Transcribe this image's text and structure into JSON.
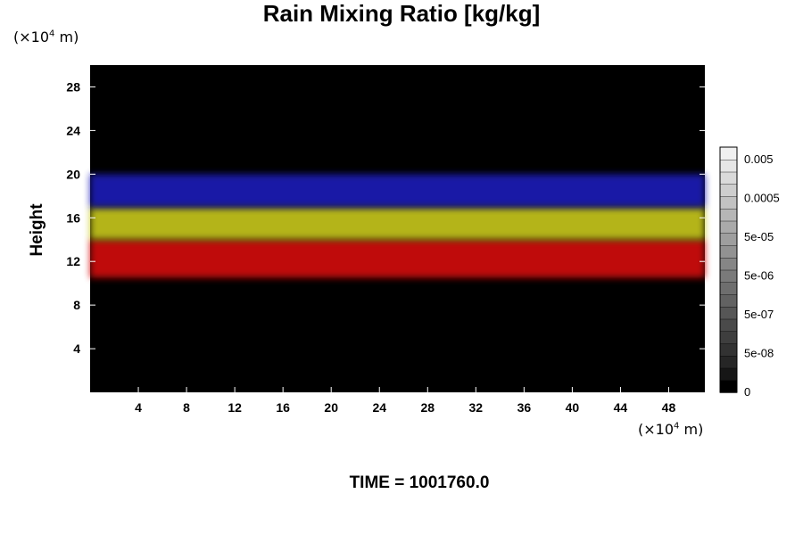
{
  "chart_data": {
    "type": "heatmap",
    "title": "Rain Mixing Ratio [kg/kg]",
    "ylabel": "Height",
    "xlabel": "",
    "y_unit": {
      "prefix": "(×10",
      "exp": "4",
      "suffix": " m)"
    },
    "x_unit": {
      "prefix": "(×10",
      "exp": "4",
      "suffix": " m)"
    },
    "xlim": [
      0,
      51
    ],
    "ylim": [
      0,
      30
    ],
    "xticks": [
      4,
      8,
      12,
      16,
      20,
      24,
      28,
      32,
      36,
      40,
      44,
      48
    ],
    "yticks": [
      4,
      8,
      12,
      16,
      20,
      24,
      28
    ],
    "grid": false,
    "background_color": "#000000",
    "colorbar": {
      "position": "right",
      "labels": [
        "0.005",
        "0.0005",
        "5e-05",
        "5e-06",
        "5e-07",
        "5e-08",
        "0"
      ],
      "colors": [
        "#000000",
        "#161616",
        "#262626",
        "#323232",
        "#3e3e3e",
        "#4a4a4a",
        "#565656",
        "#626262",
        "#6e6e6e",
        "#7a7a7a",
        "#868686",
        "#929292",
        "#9e9e9e",
        "#aaaaaa",
        "#b6b6b6",
        "#c2c2c2",
        "#cecece",
        "#dadada",
        "#e6e6e6",
        "#f0f0f0"
      ]
    },
    "layers": [
      {
        "name": "",
        "color": "#d41010",
        "x": [
          0,
          51
        ],
        "y": [
          10.5,
          14
        ]
      },
      {
        "name": "",
        "color": "#c8c81c",
        "x": [
          0,
          51
        ],
        "y": [
          14,
          17
        ]
      },
      {
        "name": "",
        "color": "#1a1ab8",
        "x": [
          0,
          51
        ],
        "y": [
          17,
          20
        ]
      }
    ]
  },
  "footer": {
    "time_label": "TIME = 1001760.0"
  }
}
